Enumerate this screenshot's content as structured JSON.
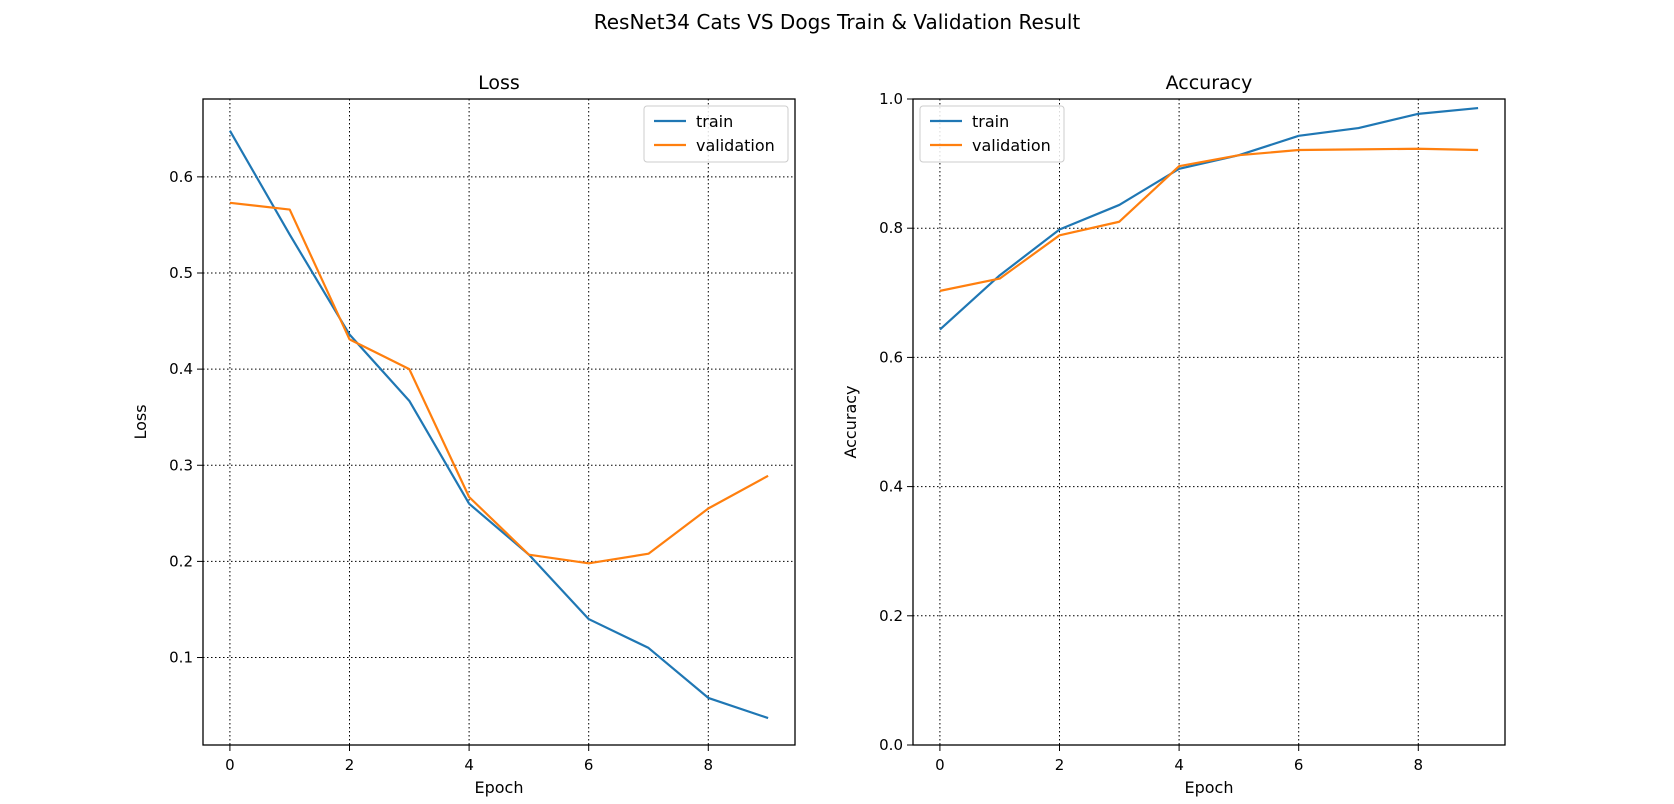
{
  "figure": {
    "title": "ResNet34 Cats VS Dogs Train & Validation Result"
  },
  "chart_data": [
    {
      "type": "line",
      "title": "Loss",
      "xlabel": "Epoch",
      "ylabel": "Loss",
      "x": [
        0,
        1,
        2,
        3,
        4,
        5,
        6,
        7,
        8,
        9
      ],
      "xlim": [
        -0.45,
        9.45
      ],
      "ylim": [
        0.009,
        0.681
      ],
      "xticks": [
        0,
        2,
        4,
        6,
        8
      ],
      "yticks": [
        0.1,
        0.2,
        0.3,
        0.4,
        0.5,
        0.6
      ],
      "xtick_labels": [
        "0",
        "2",
        "4",
        "6",
        "8"
      ],
      "ytick_labels": [
        "0.1",
        "0.2",
        "0.3",
        "0.4",
        "0.5",
        "0.6"
      ],
      "grid": true,
      "legend": "upper right",
      "series": [
        {
          "name": "train",
          "color": "#1f77b4",
          "values": [
            0.648,
            0.54,
            0.436,
            0.367,
            0.26,
            0.207,
            0.14,
            0.11,
            0.058,
            0.037
          ]
        },
        {
          "name": "validation",
          "color": "#ff7f0e",
          "values": [
            0.573,
            0.566,
            0.431,
            0.4,
            0.267,
            0.207,
            0.198,
            0.208,
            0.255,
            0.289
          ]
        }
      ]
    },
    {
      "type": "line",
      "title": "Accuracy",
      "xlabel": "Epoch",
      "ylabel": "Accuracy",
      "x": [
        0,
        1,
        2,
        3,
        4,
        5,
        6,
        7,
        8,
        9
      ],
      "xlim": [
        -0.45,
        9.45
      ],
      "ylim": [
        0.0,
        1.0
      ],
      "xticks": [
        0,
        2,
        4,
        6,
        8
      ],
      "yticks": [
        0.0,
        0.2,
        0.4,
        0.6,
        0.8,
        1.0
      ],
      "xtick_labels": [
        "0",
        "2",
        "4",
        "6",
        "8"
      ],
      "ytick_labels": [
        "0.0",
        "0.2",
        "0.4",
        "0.6",
        "0.8",
        "1.0"
      ],
      "grid": true,
      "legend": "upper left",
      "series": [
        {
          "name": "train",
          "color": "#1f77b4",
          "values": [
            0.643,
            0.727,
            0.798,
            0.836,
            0.892,
            0.913,
            0.943,
            0.955,
            0.977,
            0.986
          ]
        },
        {
          "name": "validation",
          "color": "#ff7f0e",
          "values": [
            0.703,
            0.722,
            0.789,
            0.81,
            0.896,
            0.913,
            0.921,
            0.922,
            0.923,
            0.921
          ]
        }
      ]
    }
  ]
}
